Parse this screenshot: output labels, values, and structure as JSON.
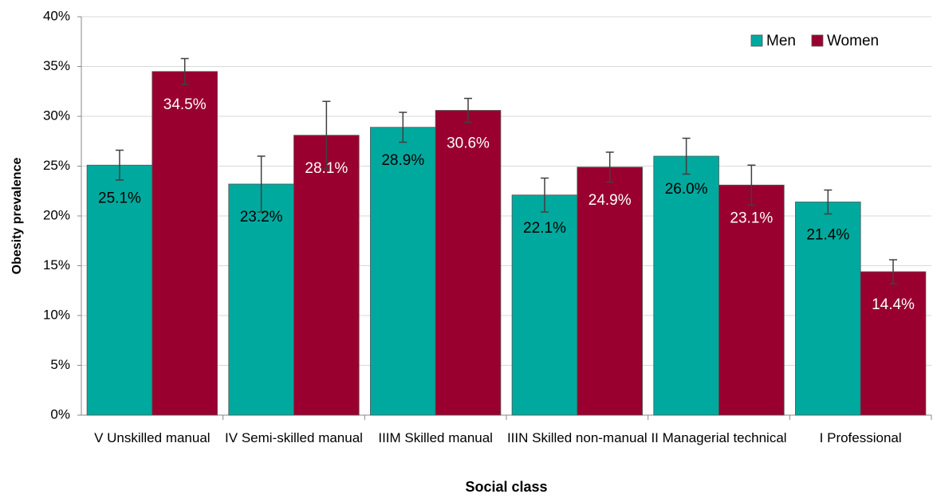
{
  "chart_data": {
    "type": "bar",
    "y_label": "Obesity prevalence",
    "x_label": "Social class",
    "categories": [
      "V Unskilled manual",
      "IV Semi-skilled manual",
      "IIIM Skilled manual",
      "IIIN Skilled non-manual",
      "II Managerial technical",
      "I Professional"
    ],
    "series": [
      {
        "name": "Men",
        "color": "#00a99d",
        "label_color": "#000000",
        "values": [
          25.1,
          23.2,
          28.9,
          22.1,
          26.0,
          21.4
        ],
        "value_labels": [
          "25.1%",
          "23.2%",
          "28.9%",
          "22.1%",
          "26.0%",
          "21.4%"
        ],
        "errors": [
          1.5,
          2.8,
          1.5,
          1.7,
          1.8,
          1.2
        ]
      },
      {
        "name": "Women",
        "color": "#99002f",
        "label_color": "#ffffff",
        "values": [
          34.5,
          28.1,
          30.6,
          24.9,
          23.1,
          14.4
        ],
        "value_labels": [
          "34.5%",
          "28.1%",
          "30.6%",
          "24.9%",
          "23.1%",
          "14.4%"
        ],
        "errors": [
          1.3,
          3.4,
          1.2,
          1.5,
          2.0,
          1.2
        ]
      }
    ],
    "ylim": [
      0,
      40
    ],
    "yticks": [
      {
        "value": 0,
        "label": "0%"
      },
      {
        "value": 5,
        "label": "5%"
      },
      {
        "value": 10,
        "label": "10%"
      },
      {
        "value": 15,
        "label": "15%"
      },
      {
        "value": 20,
        "label": "20%"
      },
      {
        "value": 25,
        "label": "25%"
      },
      {
        "value": 30,
        "label": "30%"
      },
      {
        "value": 35,
        "label": "35%"
      },
      {
        "value": 40,
        "label": "40%"
      }
    ],
    "grid": true,
    "legend": "top-right"
  }
}
